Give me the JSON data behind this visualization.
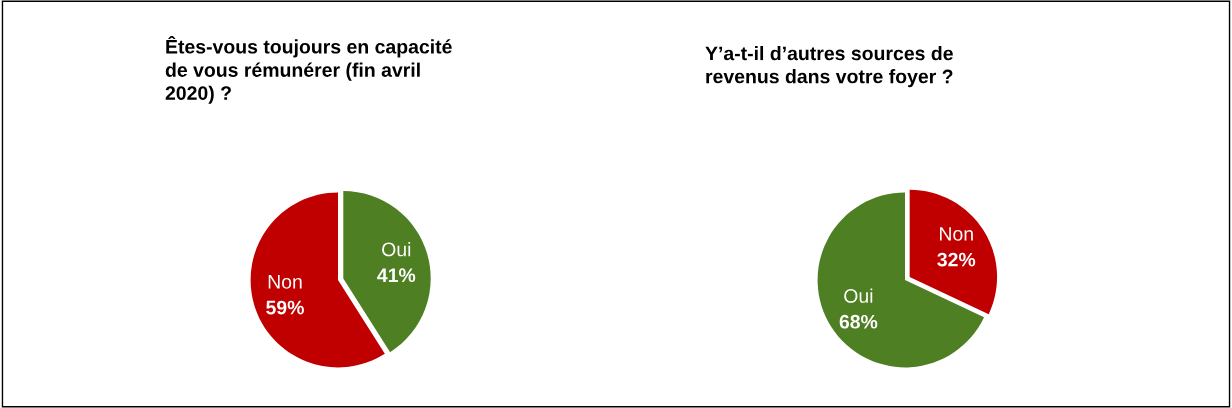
{
  "chart_data": [
    {
      "type": "pie",
      "title": "Êtes-vous toujours en capacité\nde vous rémunérer (fin avril\n2020) ?",
      "categories": [
        "Oui",
        "Non"
      ],
      "values": [
        41,
        59
      ],
      "colors": [
        "#4e7f22",
        "#c00000"
      ],
      "value_labels": [
        "41%",
        "59%"
      ]
    },
    {
      "type": "pie",
      "title": "Y’a-t-il d’autres sources de\nrevenus dans votre foyer ?",
      "categories": [
        "Non",
        "Oui"
      ],
      "values": [
        32,
        68
      ],
      "colors": [
        "#c00000",
        "#4e7f22"
      ],
      "value_labels": [
        "32%",
        "68%"
      ]
    }
  ]
}
